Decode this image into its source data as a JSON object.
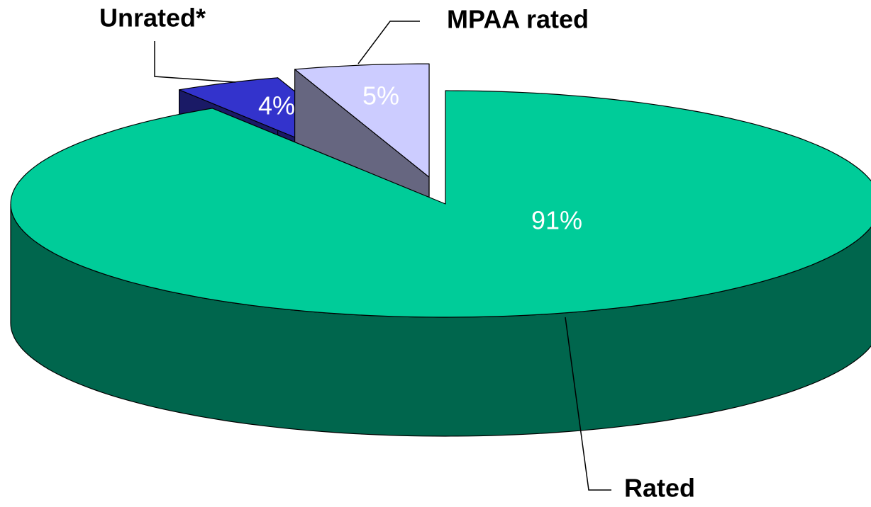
{
  "chart_data": {
    "type": "pie",
    "categories": [
      "Rated",
      "Unrated*",
      "MPAA rated"
    ],
    "values": [
      91,
      4,
      5
    ],
    "value_labels": [
      "91%",
      "4%",
      "5%"
    ],
    "colors": [
      "#00cc99",
      "#3333cc",
      "#ccccff"
    ]
  }
}
